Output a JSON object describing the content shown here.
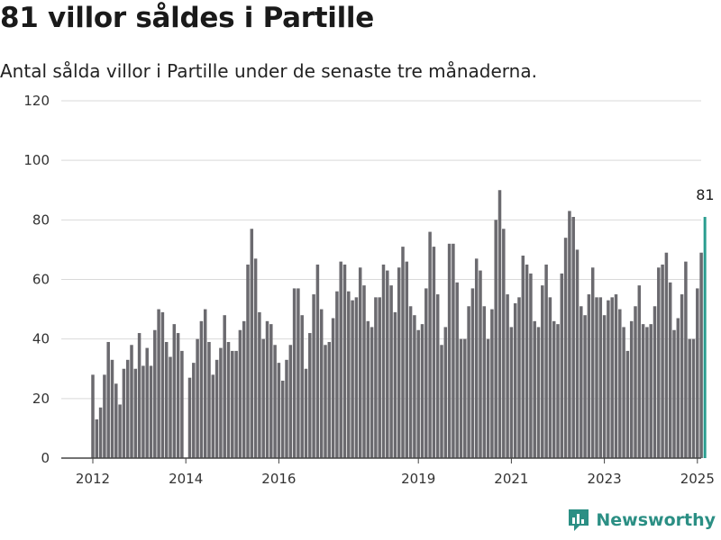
{
  "title": "81 villor såldes i Partille",
  "subtitle": "Antal sålda villor i Partille under de senaste tre månaderna.",
  "brand": {
    "name": "Newsworthy",
    "icon": "bar-chart-logo-icon",
    "color": "#2b8f84"
  },
  "colors": {
    "bars": "#6b6a6f",
    "highlight": "#2a9d8f",
    "grid": "#d9d9d9",
    "axis": "#444444"
  },
  "chart_data": {
    "type": "bar",
    "title": "81 villor såldes i Partille",
    "xlabel": "",
    "ylabel": "",
    "ylim": [
      0,
      120
    ],
    "yticks": [
      0,
      20,
      40,
      60,
      80,
      100,
      120
    ],
    "grid": true,
    "xtick_labels": [
      "2012",
      "2014",
      "2016",
      "2019",
      "2021",
      "2023",
      "2025"
    ],
    "xtick_positions": [
      "2012-01",
      "2014-01",
      "2016-01",
      "2019-01",
      "2021-01",
      "2023-01",
      "2025-01"
    ],
    "start_month": "2012-01",
    "values": [
      28,
      13,
      17,
      28,
      39,
      33,
      25,
      18,
      30,
      33,
      38,
      30,
      42,
      31,
      37,
      31,
      43,
      50,
      49,
      39,
      34,
      45,
      42,
      36,
      0,
      27,
      32,
      40,
      46,
      50,
      39,
      28,
      33,
      37,
      48,
      39,
      36,
      36,
      43,
      46,
      65,
      77,
      67,
      49,
      40,
      46,
      45,
      38,
      32,
      26,
      33,
      38,
      57,
      57,
      48,
      30,
      42,
      55,
      65,
      50,
      38,
      39,
      47,
      56,
      66,
      65,
      56,
      53,
      54,
      64,
      58,
      46,
      44,
      54,
      54,
      65,
      63,
      58,
      49,
      64,
      71,
      66,
      51,
      48,
      43,
      45,
      57,
      76,
      71,
      55,
      38,
      44,
      72,
      72,
      59,
      40,
      40,
      51,
      57,
      67,
      63,
      51,
      40,
      50,
      80,
      90,
      77,
      55,
      44,
      52,
      54,
      68,
      65,
      62,
      46,
      44,
      58,
      65,
      54,
      46,
      45,
      62,
      74,
      83,
      81,
      70,
      51,
      48,
      55,
      64,
      54,
      54,
      48,
      53,
      54,
      55,
      50,
      44,
      36,
      46,
      51,
      58,
      45,
      44,
      45,
      51,
      64,
      65,
      69,
      59,
      43,
      47,
      55,
      66,
      40,
      40,
      57,
      69,
      81
    ],
    "highlight_last": true,
    "annotation": {
      "text": "81",
      "value": 81
    }
  }
}
